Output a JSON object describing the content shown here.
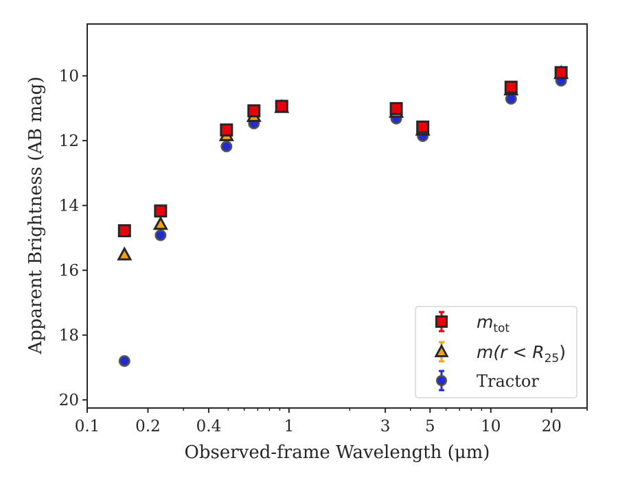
{
  "chart_data": {
    "type": "scatter",
    "title": "",
    "xlabel": "Observed-frame Wavelength (μm)",
    "ylabel": "Apparent Brightness (AB mag)",
    "xscale": "log",
    "xlim": [
      0.1,
      30
    ],
    "ylim": [
      20.25,
      8.4
    ],
    "y_inverted": true,
    "x_ticks": [
      0.1,
      0.2,
      0.4,
      1,
      3,
      5,
      10,
      20
    ],
    "x_tick_labels": [
      "0.1",
      "0.2",
      "0.4",
      "1",
      "3",
      "5",
      "10",
      "20"
    ],
    "y_ticks": [
      10,
      12,
      14,
      16,
      18,
      20
    ],
    "y_tick_labels": [
      "10",
      "12",
      "14",
      "16",
      "18",
      "20"
    ],
    "grid": false,
    "legend_position": "lower-right",
    "series": [
      {
        "name": "m_tot",
        "legend_text": "m",
        "legend_sub": "tot",
        "marker": "square",
        "color": "#e8000b",
        "x": [
          0.153,
          0.231,
          0.49,
          0.67,
          0.92,
          3.4,
          4.6,
          12.6,
          22.3
        ],
        "y": [
          14.78,
          14.17,
          11.67,
          11.08,
          10.94,
          11.01,
          11.58,
          10.35,
          9.9
        ]
      },
      {
        "name": "m(r < R25)",
        "legend_text": "m(r < R",
        "legend_sub": "25",
        "legend_close": ")",
        "marker": "triangle",
        "color": "#f1a21a",
        "x": [
          0.153,
          0.231,
          0.49,
          0.67,
          0.92,
          3.4,
          4.6,
          12.6,
          22.3
        ],
        "y": [
          15.52,
          14.58,
          11.84,
          11.25,
          10.97,
          11.12,
          11.67,
          10.43,
          9.92
        ]
      },
      {
        "name": "Tractor",
        "legend_text": "Tractor",
        "marker": "circle",
        "color": "#1f2bd6",
        "x": [
          0.153,
          0.231,
          0.49,
          0.67,
          0.92,
          3.4,
          4.6,
          12.6,
          22.3
        ],
        "y": [
          18.8,
          14.92,
          12.18,
          11.47,
          10.95,
          11.32,
          11.86,
          10.71,
          10.15
        ]
      }
    ]
  }
}
